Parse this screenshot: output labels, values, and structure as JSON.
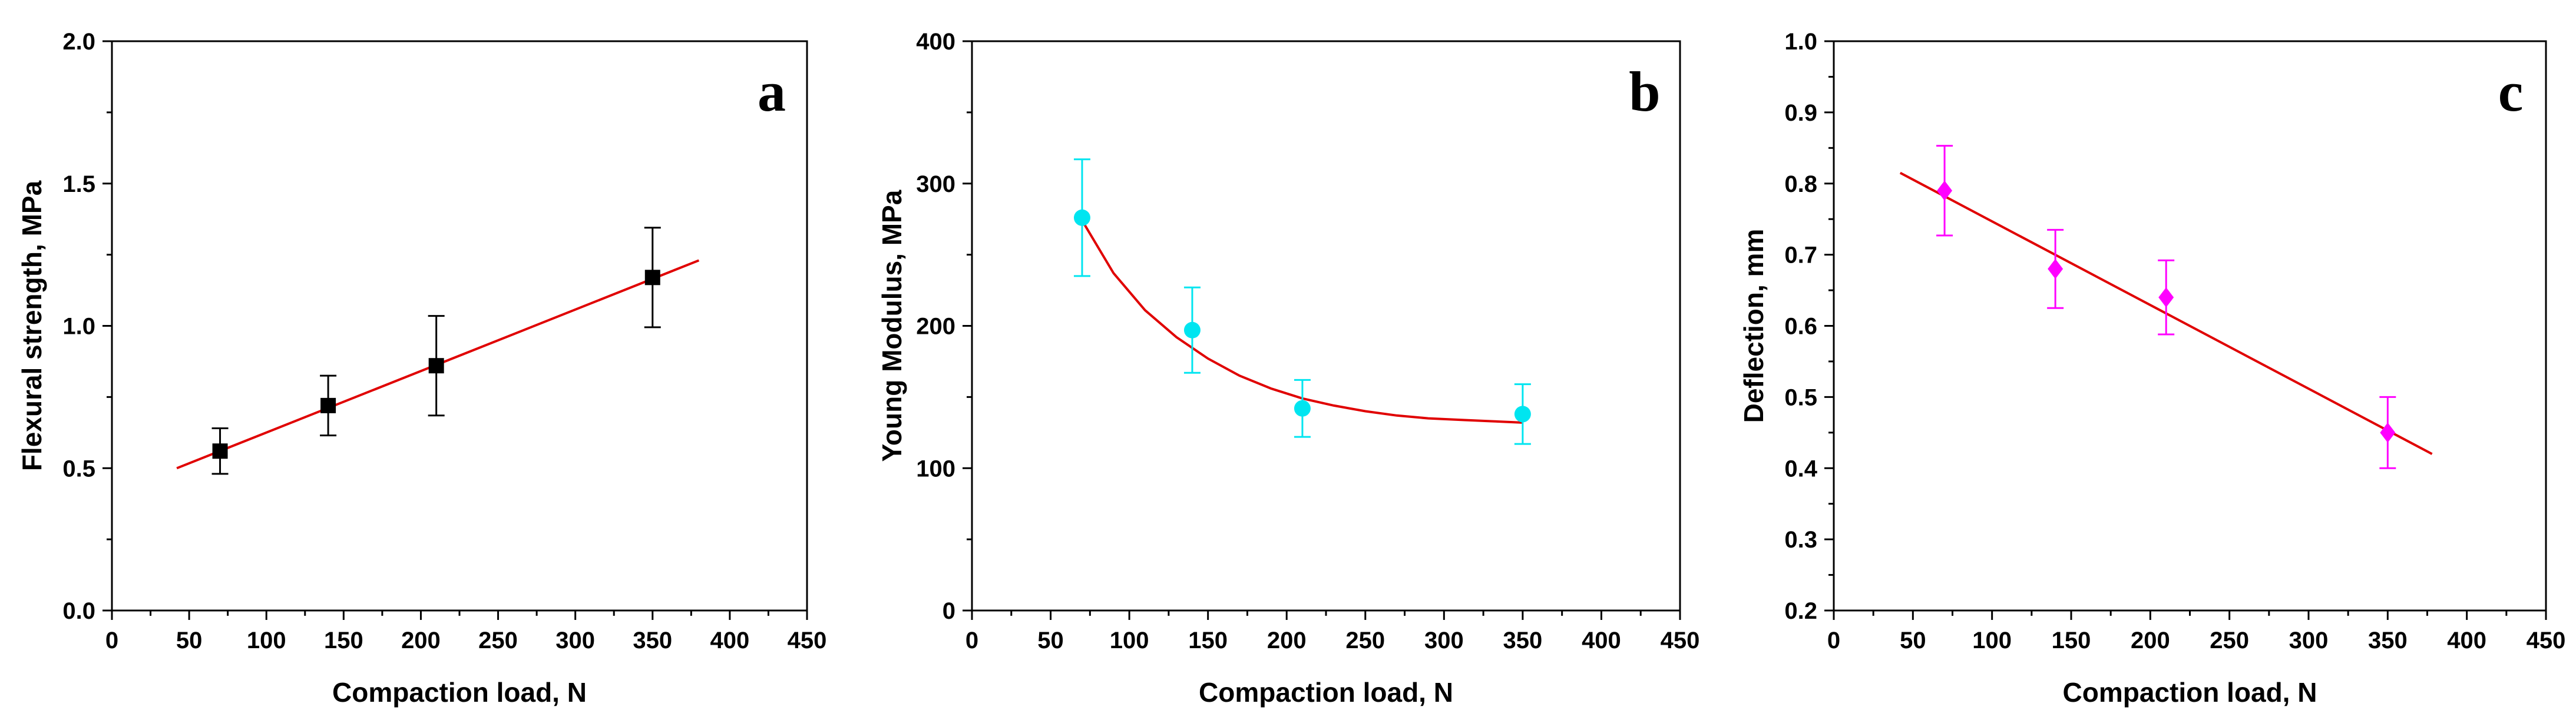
{
  "chart_data": [
    {
      "type": "scatter",
      "panel_label": "a",
      "xlabel": "Compaction load, N",
      "ylabel": "Flexural strength, MPa",
      "xlim": [
        0,
        450
      ],
      "ylim": [
        0.0,
        2.0
      ],
      "xticks": [
        0,
        50,
        100,
        150,
        200,
        250,
        300,
        350,
        400,
        450
      ],
      "xtick_labels": [
        "0",
        "50",
        "100",
        "150",
        "200",
        "250",
        "300",
        "350",
        "400",
        "450"
      ],
      "yticks": [
        0.0,
        0.5,
        1.0,
        1.5,
        2.0
      ],
      "ytick_labels": [
        "0.0",
        "0.5",
        "1.0",
        "1.5",
        "2.0"
      ],
      "grid": false,
      "series": [
        {
          "marker": "square",
          "color": "#000000",
          "x": [
            70,
            140,
            210,
            350
          ],
          "y": [
            0.56,
            0.72,
            0.86,
            1.17
          ],
          "error": [
            0.08,
            0.105,
            0.175,
            0.175
          ]
        }
      ],
      "fit": {
        "kind": "linear",
        "color": "#e00000",
        "x": [
          42,
          380
        ],
        "y": [
          0.5,
          1.23
        ]
      }
    },
    {
      "type": "scatter",
      "panel_label": "b",
      "xlabel": "Compaction load, N",
      "ylabel": "Young Modulus, MPa",
      "xlim": [
        0,
        450
      ],
      "ylim": [
        0,
        400
      ],
      "xticks": [
        0,
        50,
        100,
        150,
        200,
        250,
        300,
        350,
        400,
        450
      ],
      "xtick_labels": [
        "0",
        "50",
        "100",
        "150",
        "200",
        "250",
        "300",
        "350",
        "400",
        "450"
      ],
      "yticks": [
        0,
        100,
        200,
        300,
        400
      ],
      "ytick_labels": [
        "0",
        "100",
        "200",
        "300",
        "400"
      ],
      "grid": false,
      "series": [
        {
          "marker": "circle",
          "color": "#00e5f0",
          "x": [
            70,
            140,
            210,
            350
          ],
          "y": [
            276,
            197,
            142,
            138
          ],
          "error": [
            41,
            30,
            20,
            21
          ]
        }
      ],
      "fit": {
        "kind": "exponential decay",
        "color": "#e00000",
        "x": [
          70,
          90,
          110,
          130,
          150,
          170,
          190,
          210,
          230,
          250,
          270,
          290,
          310,
          330,
          350
        ],
        "y": [
          274,
          237,
          211,
          192,
          177,
          165,
          156,
          149,
          144,
          140,
          137,
          135,
          134,
          133,
          132
        ]
      }
    },
    {
      "type": "scatter",
      "panel_label": "c",
      "xlabel": "Compaction load, N",
      "ylabel": "Deflection, mm",
      "xlim": [
        0,
        450
      ],
      "ylim": [
        0.2,
        1.0
      ],
      "xticks": [
        0,
        50,
        100,
        150,
        200,
        250,
        300,
        350,
        400,
        450
      ],
      "xtick_labels": [
        "0",
        "50",
        "100",
        "150",
        "200",
        "250",
        "300",
        "350",
        "400",
        "450"
      ],
      "yticks": [
        0.2,
        0.3,
        0.4,
        0.5,
        0.6,
        0.7,
        0.8,
        0.9,
        1.0
      ],
      "ytick_labels": [
        "0.2",
        "0.3",
        "0.4",
        "0.5",
        "0.6",
        "0.7",
        "0.8",
        "0.9",
        "1.0"
      ],
      "grid": false,
      "series": [
        {
          "marker": "diamond",
          "color": "#ff00ff",
          "x": [
            70,
            140,
            210,
            350
          ],
          "y": [
            0.79,
            0.68,
            0.64,
            0.45
          ],
          "error": [
            0.063,
            0.055,
            0.052,
            0.05
          ]
        }
      ],
      "fit": {
        "kind": "linear",
        "color": "#e00000",
        "x": [
          42,
          378
        ],
        "y": [
          0.815,
          0.42
        ]
      }
    }
  ]
}
